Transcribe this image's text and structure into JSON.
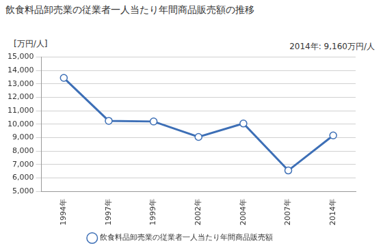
{
  "chart_data": {
    "type": "line",
    "title": "飲食料品卸売業の従業者一人当たり年間商品販売額の推移",
    "ylabel": "[万円/人]",
    "annotations": [
      "2014年: 9,160万円/人"
    ],
    "categories": [
      "1994年",
      "1997年",
      "1999年",
      "2002年",
      "2004年",
      "2007年",
      "2014年"
    ],
    "series": [
      {
        "name": "飲食料品卸売業の従業者一人当たり年間商品販売額",
        "color": "#3d6fb6",
        "marker": "circle",
        "line_style": "solid",
        "values": [
          13450,
          10250,
          10200,
          9050,
          10050,
          6550,
          9160
        ]
      }
    ],
    "ylim": [
      5000,
      15000
    ],
    "yticks": [
      {
        "value": 5000,
        "label": "5,000"
      },
      {
        "value": 6000,
        "label": "6,000"
      },
      {
        "value": 7000,
        "label": "7,000"
      },
      {
        "value": 8000,
        "label": "8,000"
      },
      {
        "value": 9000,
        "label": "9,000"
      },
      {
        "value": 10000,
        "label": "10,000"
      },
      {
        "value": 11000,
        "label": "11,000"
      },
      {
        "value": 12000,
        "label": "12,000"
      },
      {
        "value": 13000,
        "label": "13,000"
      },
      {
        "value": 14000,
        "label": "14,000"
      },
      {
        "value": 15000,
        "label": "15,000"
      }
    ],
    "grid": true,
    "legend": "bottom"
  }
}
